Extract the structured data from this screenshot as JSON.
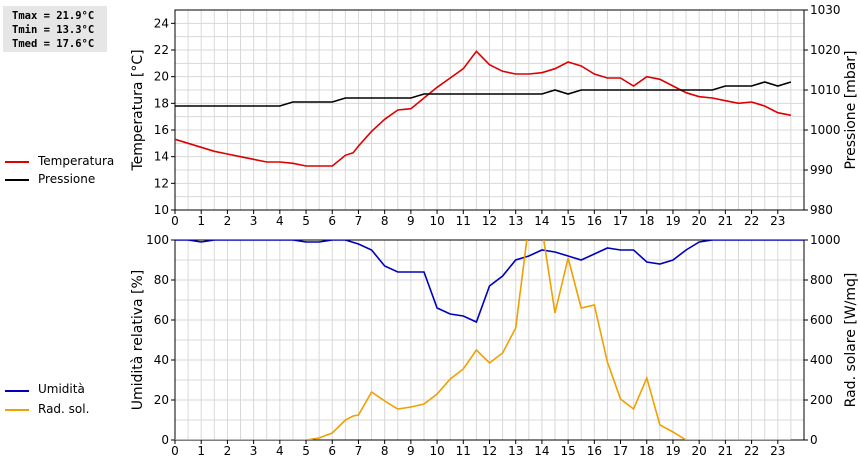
{
  "stats": {
    "tmax": "Tmax = 21.9°C",
    "tmin": "Tmin = 13.3°C",
    "tmed": "Tmed = 17.6°C"
  },
  "legend_top": [
    {
      "label": "Temperatura",
      "color": "#dd0000"
    },
    {
      "label": "Pressione",
      "color": "#000000"
    }
  ],
  "legend_bottom": [
    {
      "label": "Umidità",
      "color": "#0000bb"
    },
    {
      "label": "Rad. sol.",
      "color": "#f0a000"
    }
  ],
  "chart_data": [
    {
      "type": "line",
      "grid": true,
      "xlim": [
        0,
        24
      ],
      "x_ticks": [
        "0",
        "1",
        "2",
        "3",
        "4",
        "5",
        "6",
        "7",
        "8",
        "9",
        "10",
        "11",
        "12",
        "13",
        "14",
        "15",
        "16",
        "17",
        "18",
        "19",
        "20",
        "21",
        "22",
        "23"
      ],
      "ylabel_left": "Temperatura [°C]",
      "ylim_left": [
        10,
        25
      ],
      "y_ticks_left": [
        "10",
        "12",
        "14",
        "16",
        "18",
        "20",
        "22",
        "24"
      ],
      "ylabel_right": "Pressione [mbar]",
      "ylim_right": [
        980,
        1030
      ],
      "y_ticks_right": [
        "980",
        "990",
        "1000",
        "1010",
        "1020",
        "1030"
      ],
      "series": [
        {
          "name": "Temperatura",
          "axis": "left",
          "color": "#dd0000",
          "x": [
            0,
            0.5,
            1,
            1.5,
            2,
            2.5,
            3,
            3.5,
            4,
            4.5,
            5,
            5.5,
            6,
            6.5,
            6.8,
            7,
            7.5,
            8,
            8.5,
            9,
            9.5,
            10,
            10.5,
            11,
            11.5,
            12,
            12.5,
            13,
            13.5,
            14,
            14.5,
            15,
            15.5,
            16,
            16.5,
            17,
            17.5,
            18,
            18.5,
            19,
            19.5,
            20,
            20.5,
            21,
            21.5,
            22,
            22.5,
            23,
            23.5
          ],
          "y": [
            15.3,
            15.0,
            14.7,
            14.4,
            14.2,
            14.0,
            13.8,
            13.6,
            13.6,
            13.5,
            13.3,
            13.3,
            13.3,
            14.1,
            14.3,
            14.8,
            15.9,
            16.8,
            17.5,
            17.6,
            18.4,
            19.2,
            19.9,
            20.6,
            21.9,
            20.9,
            20.4,
            20.2,
            20.2,
            20.3,
            20.6,
            21.1,
            20.8,
            20.2,
            19.9,
            19.9,
            19.3,
            20.0,
            19.8,
            19.3,
            18.8,
            18.5,
            18.4,
            18.2,
            18.0,
            18.1,
            17.8,
            17.3,
            17.1
          ]
        },
        {
          "name": "Pressione",
          "axis": "right",
          "color": "#000000",
          "x": [
            0,
            4,
            4.5,
            6,
            6.5,
            9,
            9.5,
            14,
            14.5,
            15,
            15.5,
            20,
            20.5,
            21,
            22,
            22.5,
            23,
            23.5
          ],
          "y": [
            1006,
            1006,
            1007,
            1007,
            1008,
            1008,
            1009,
            1009,
            1010,
            1009,
            1010,
            1010,
            1010,
            1011,
            1011,
            1012,
            1011,
            1012
          ]
        }
      ]
    },
    {
      "type": "line",
      "grid": true,
      "xlim": [
        0,
        24
      ],
      "x_ticks": [
        "0",
        "1",
        "2",
        "3",
        "4",
        "5",
        "6",
        "7",
        "8",
        "9",
        "10",
        "11",
        "12",
        "13",
        "14",
        "15",
        "16",
        "17",
        "18",
        "19",
        "20",
        "21",
        "22",
        "23"
      ],
      "ylabel_left": "Umidità relativa [%]",
      "ylim_left": [
        0,
        100
      ],
      "y_ticks_left": [
        "0",
        "20",
        "40",
        "60",
        "80",
        "100"
      ],
      "ylabel_right": "Rad. solare [W/mq]",
      "ylim_right": [
        0,
        1000
      ],
      "y_ticks_right": [
        "0",
        "200",
        "400",
        "600",
        "800",
        "1000"
      ],
      "series": [
        {
          "name": "Umidità",
          "axis": "left",
          "color": "#0000bb",
          "x": [
            0,
            0.5,
            1,
            1.5,
            2,
            4,
            4.5,
            5,
            5.5,
            6,
            6.5,
            7,
            7.5,
            8,
            8.5,
            9,
            9.5,
            10,
            10.5,
            11,
            11.5,
            12,
            12.5,
            13,
            13.5,
            14,
            14.5,
            15,
            15.5,
            16,
            16.5,
            17,
            17.5,
            18,
            18.5,
            19,
            19.5,
            20,
            20.5,
            24
          ],
          "y": [
            100,
            100,
            99,
            100,
            100,
            100,
            100,
            99,
            99,
            100,
            100,
            98,
            95,
            87,
            84,
            84,
            84,
            66,
            63,
            62,
            59,
            77,
            82,
            90,
            92,
            95,
            94,
            92,
            90,
            93,
            96,
            95,
            95,
            89,
            88,
            90,
            95,
            99,
            100,
            100
          ]
        },
        {
          "name": "Rad. sol.",
          "axis": "right",
          "color": "#f0a000",
          "x": [
            0,
            0.5,
            1,
            1.5,
            2,
            2.5,
            3,
            3.5,
            4,
            4.5,
            5,
            5.5,
            6,
            6.5,
            6.8,
            7,
            7.5,
            8,
            8.5,
            9,
            9.5,
            10,
            10.5,
            11,
            11.5,
            12,
            12.5,
            13,
            13.5,
            14,
            14.5,
            15,
            15.5,
            16,
            16.5,
            17,
            17.5,
            18,
            18.5,
            19,
            19.5,
            20,
            20.5,
            21,
            21.5,
            22,
            22.5,
            23,
            23.5
          ],
          "y": [
            0,
            0,
            0,
            0,
            0,
            0,
            0,
            0,
            0,
            0,
            0,
            10,
            35,
            100,
            120,
            125,
            240,
            195,
            155,
            165,
            180,
            230,
            305,
            355,
            450,
            385,
            435,
            560,
            1080,
            1060,
            635,
            910,
            660,
            675,
            390,
            205,
            155,
            310,
            75,
            40,
            0,
            0,
            0,
            0,
            0,
            0,
            0,
            0,
            0
          ]
        }
      ]
    }
  ]
}
